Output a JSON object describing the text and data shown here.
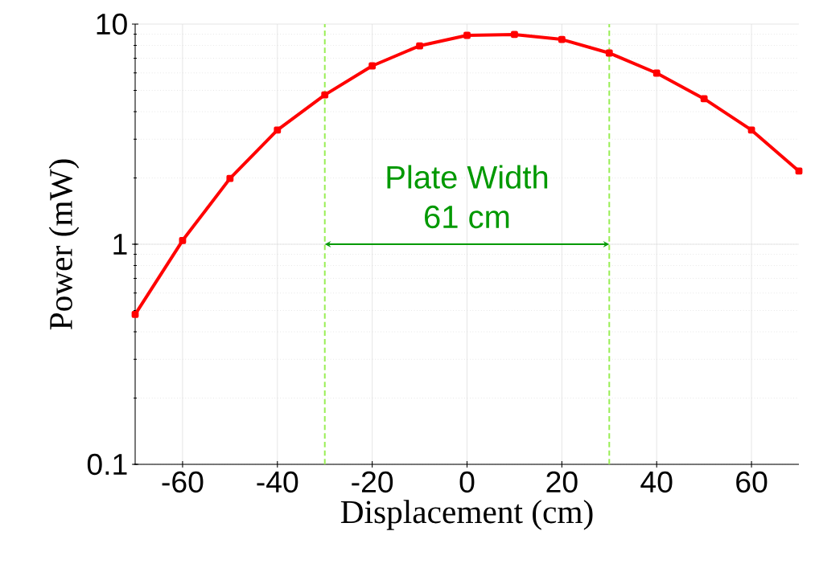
{
  "chart_data": {
    "type": "line",
    "xlabel": "Displacement (cm)",
    "ylabel": "Power (mW)",
    "x": [
      -70,
      -60,
      -50,
      -40,
      -30,
      -20,
      -10,
      0,
      10,
      20,
      30,
      40,
      50,
      60,
      70
    ],
    "series": [
      {
        "color": "#ff0000",
        "values": [
          0.48,
          1.04,
          1.99,
          3.3,
          4.77,
          6.46,
          7.97,
          8.89,
          8.97,
          8.52,
          7.39,
          5.99,
          4.58,
          3.3,
          2.15
        ]
      }
    ],
    "xlim": [
      -70,
      70
    ],
    "ylim": [
      0.1,
      10
    ],
    "xticks": [
      -60,
      -40,
      -20,
      0,
      20,
      40,
      60
    ],
    "yticks": [
      0.1,
      1,
      10
    ],
    "log": "y",
    "grid": true,
    "marker": "square",
    "line_style": "solid",
    "ref_lines": [
      {
        "axis": "x",
        "value": -30,
        "color": "#99ee55",
        "line_style": "dashed"
      },
      {
        "axis": "x",
        "value": 30,
        "color": "#99ee55",
        "line_style": "dashed"
      }
    ],
    "annotations": [
      "Plate Width",
      "61 cm"
    ]
  }
}
